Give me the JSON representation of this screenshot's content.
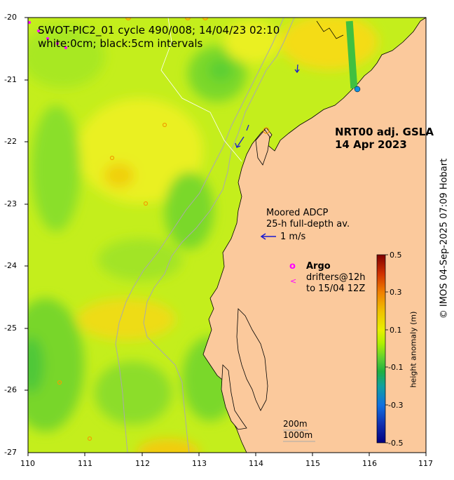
{
  "map": {
    "title_line1": "SWOT-PIC2_01 cycle 490/008; 14/04/23 02:10",
    "title_line2": "white:0cm; black:5cm intervals",
    "product_line1": "NRT00 adj. GSLA",
    "product_line2": "14 Apr 2023",
    "adcp_line1": "Moored ADCP",
    "adcp_line2": "25-h full-depth av.",
    "adcp_scale": "1 m/s",
    "argo_symbol": "o",
    "argo_label": "Argo",
    "drifter_symbol": "<",
    "drifter_line1": "drifters@12h",
    "drifter_line2": "to 15/04 12Z",
    "isobath_1": "200m",
    "isobath_2": "1000m",
    "credit": "© IMOS 04-Sep-2025 07:09 Hobart",
    "x_ticks": [
      "110",
      "111",
      "112",
      "113",
      "114",
      "115",
      "116",
      "117"
    ],
    "y_ticks": [
      "-20",
      "-21",
      "-22",
      "-23",
      "-24",
      "-25",
      "-26",
      "-27"
    ],
    "colorbar": {
      "label": "height anomaly (m)",
      "ticks": [
        "0.5",
        "0.3",
        "0.1",
        "-0.1",
        "-0.3",
        "-0.5"
      ],
      "colors": [
        "#800000",
        "#d03000",
        "#f08000",
        "#f0c000",
        "#e8f000",
        "#b0f000",
        "#60d030",
        "#20b040",
        "#10a0a0",
        "#1070e0",
        "#1030b0",
        "#000080"
      ]
    },
    "colors": {
      "land": "#fbc99c",
      "field_base": "#c4ee1c",
      "field_yellow": "#eaf020",
      "field_green": "#7ad82c",
      "field_orange": "#f2cc10",
      "isobath": "#aaaaaa",
      "argo": "#ff00ff",
      "adcp": "#1a1ad0"
    }
  }
}
